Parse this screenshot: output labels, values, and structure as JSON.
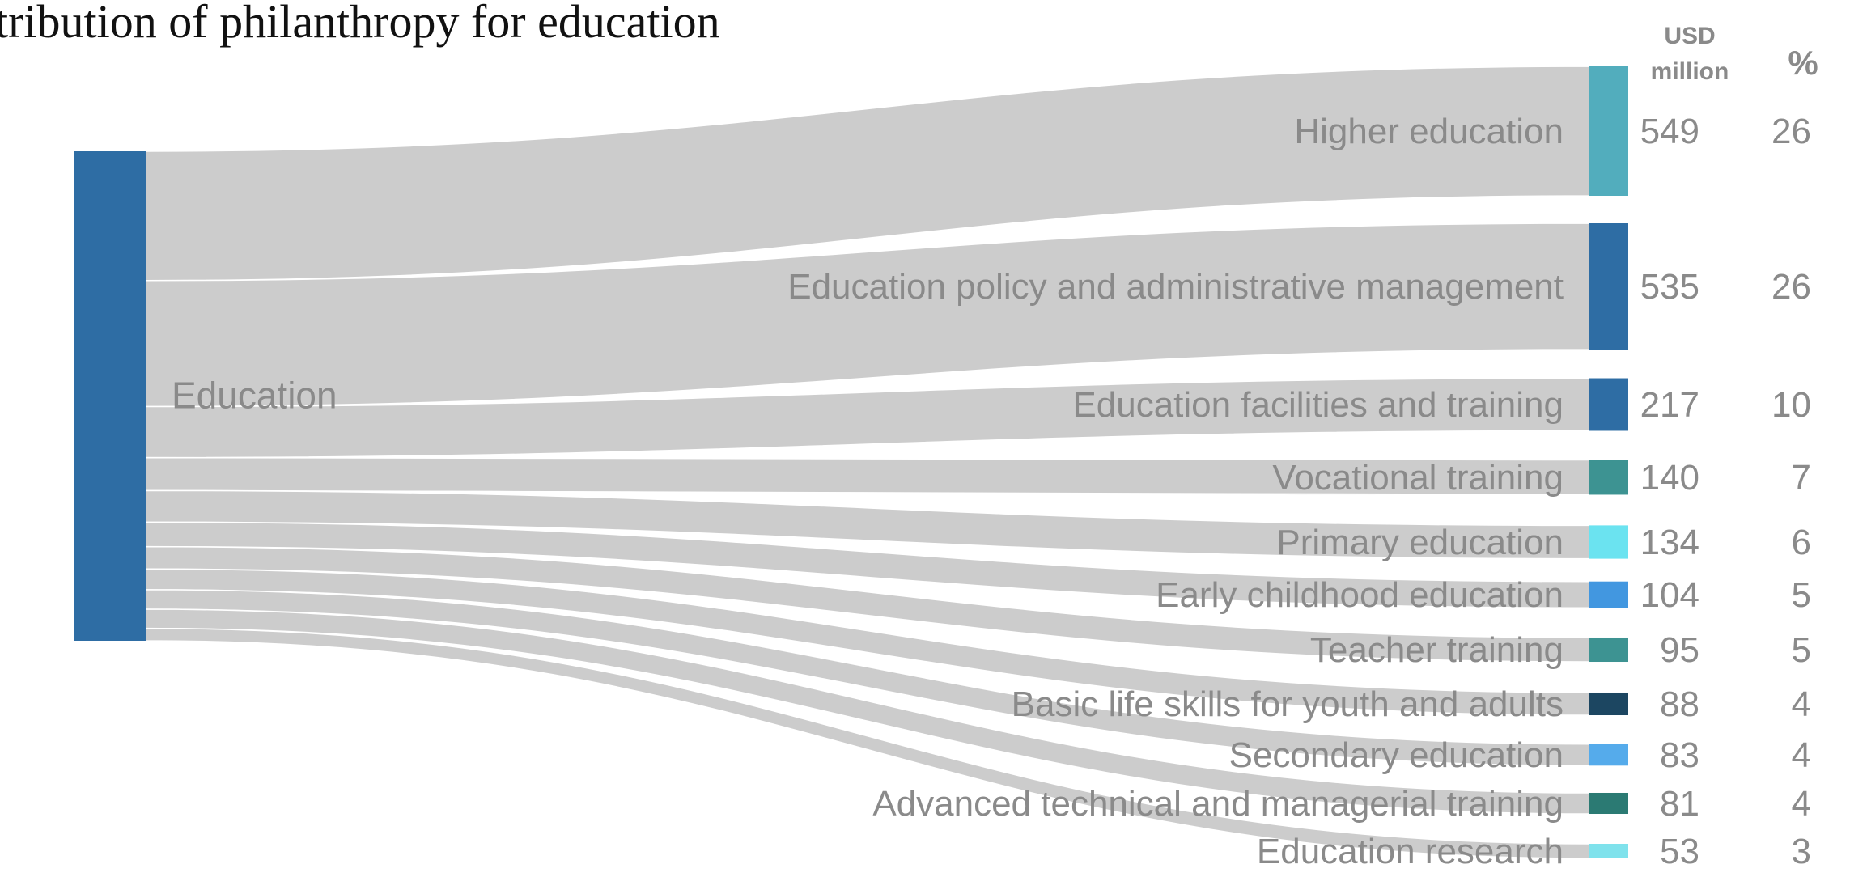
{
  "chart_data": {
    "type": "sankey",
    "title": "tribution of philanthropy for education",
    "source": {
      "label": "Education",
      "color": "#2e6da4"
    },
    "value_header": [
      "USD",
      "million"
    ],
    "percent_header": "%",
    "unit": "USD million",
    "targets": [
      {
        "label": "Higher education",
        "value": 549,
        "percent": 26,
        "color": "#52adbd"
      },
      {
        "label": "Education policy and administrative management",
        "value": 535,
        "percent": 26,
        "color": "#2e6da4"
      },
      {
        "label": "Education facilities and training",
        "value": 217,
        "percent": 10,
        "color": "#2e6da4"
      },
      {
        "label": "Vocational training",
        "value": 140,
        "percent": 7,
        "color": "#3d9392"
      },
      {
        "label": "Primary education",
        "value": 134,
        "percent": 6,
        "color": "#6be3f0"
      },
      {
        "label": "Early childhood education",
        "value": 104,
        "percent": 5,
        "color": "#4297e0"
      },
      {
        "label": "Teacher training",
        "value": 95,
        "percent": 5,
        "color": "#3d9392"
      },
      {
        "label": "Basic life skills for youth and adults",
        "value": 88,
        "percent": 4,
        "color": "#1c4661"
      },
      {
        "label": "Secondary education",
        "value": 83,
        "percent": 4,
        "color": "#55abeb"
      },
      {
        "label": "Advanced technical and managerial training",
        "value": 81,
        "percent": 4,
        "color": "#2b7a73"
      },
      {
        "label": "Education research",
        "value": 53,
        "percent": 3,
        "color": "#7fe2ec"
      }
    ],
    "link_color": "#cccccc"
  }
}
